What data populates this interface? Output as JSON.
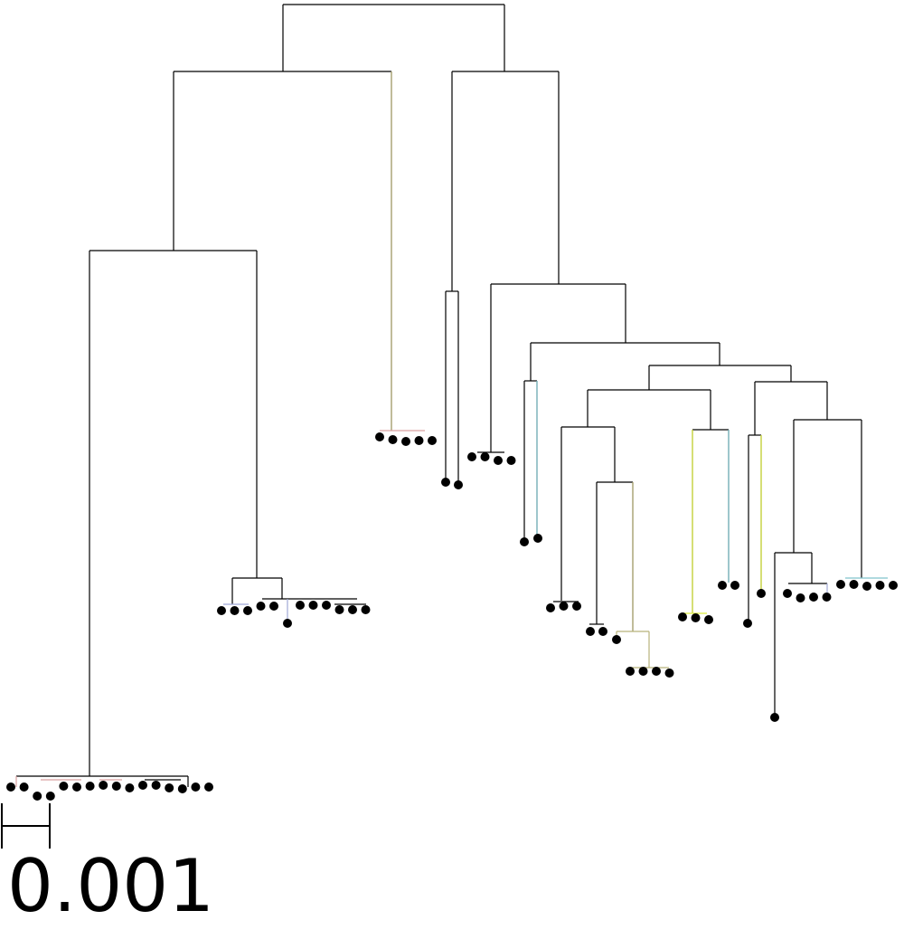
{
  "diagram": {
    "type": "phylogenetic-tree",
    "scale_bar": {
      "label": "0.001"
    },
    "colors": {
      "branch": "#000000",
      "leaf": "#000000",
      "clade_red": "#d9a0a0",
      "clade_blue": "#9fa8d6",
      "clade_olive": "#b8b27a",
      "clade_teal": "#80c4cc",
      "clade_yellow": "#dcec3c"
    }
  }
}
